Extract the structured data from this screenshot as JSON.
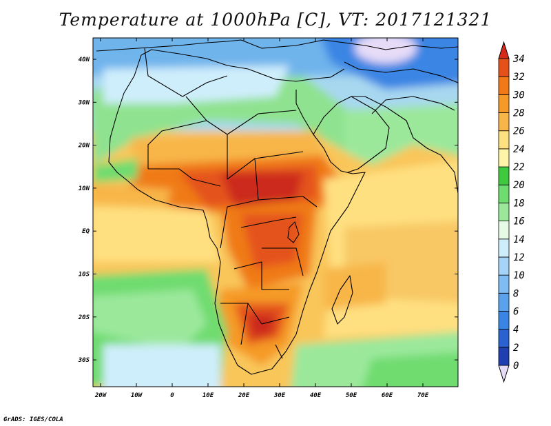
{
  "title": "Temperature at 1000hPa [C], VT: 2017121321",
  "credit": "GrADS: IGES/COLA",
  "lon_labels": [
    "20W",
    "10W",
    "0",
    "10E",
    "20E",
    "30E",
    "40E",
    "50E",
    "60E",
    "70E"
  ],
  "lat_labels": [
    "40N",
    "30N",
    "20N",
    "10N",
    "EQ",
    "10S",
    "20S",
    "30S"
  ],
  "colorbar": {
    "labels": [
      "0",
      "2",
      "4",
      "6",
      "8",
      "10",
      "12",
      "14",
      "16",
      "18",
      "20",
      "22",
      "24",
      "26",
      "28",
      "30",
      "32",
      "34"
    ],
    "colors": [
      "#1a1a7a",
      "#1f3fb0",
      "#2a62cf",
      "#3a85e4",
      "#5aa2ee",
      "#7fbcf4",
      "#a6d4f8",
      "#cfeefc",
      "#e6fbe6",
      "#9be89b",
      "#6fdc6f",
      "#3fc93f",
      "#fff5a8",
      "#ffe080",
      "#f8b64a",
      "#f59a28",
      "#f07a18",
      "#e4521a",
      "#cc2a1a"
    ],
    "low_arrow_color": "#e6dcf8",
    "high_arrow_color": "#d42a1a"
  }
}
